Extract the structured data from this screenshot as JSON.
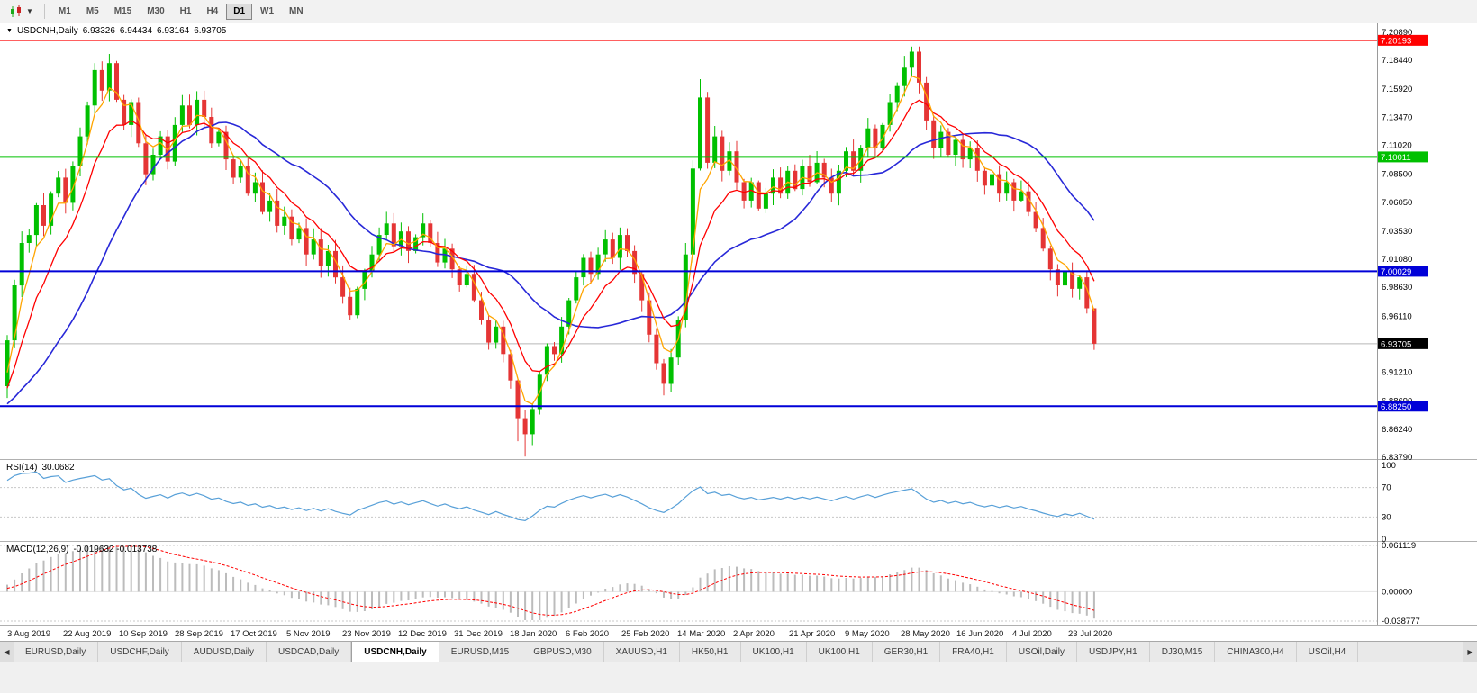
{
  "toolbar": {
    "timeframes": [
      "M1",
      "M5",
      "M15",
      "M30",
      "H1",
      "H4",
      "D1",
      "W1",
      "MN"
    ],
    "active_timeframe": "D1"
  },
  "chart_header": {
    "symbol": "USDCNH,Daily",
    "open": "6.93326",
    "high": "6.94434",
    "low": "6.93164",
    "close": "6.93705"
  },
  "price_axis": {
    "labels": [
      "7.20890",
      "7.18440",
      "7.15920",
      "7.13470",
      "7.11020",
      "7.08500",
      "7.06050",
      "7.03530",
      "7.01080",
      "6.98630",
      "6.96110",
      "6.93660",
      "6.91210",
      "6.88690",
      "6.86240",
      "6.83790"
    ]
  },
  "hlines": [
    {
      "price": 7.20193,
      "label": "7.20193",
      "color": "#ff0000",
      "width": 1.4
    },
    {
      "price": 7.10011,
      "label": "7.10011",
      "color": "#00c000",
      "width": 2
    },
    {
      "price": 7.00029,
      "label": "7.00029",
      "color": "#0000d8",
      "width": 2
    },
    {
      "price": 6.8825,
      "label": "6.88250",
      "color": "#0000d8",
      "width": 2
    }
  ],
  "current_price": {
    "value": 6.93705,
    "label": "6.93705",
    "tag_color": "#000000"
  },
  "chart_data": {
    "type": "candlestick",
    "symbol": "USDCNH",
    "timeframe": "Daily",
    "title": "USDCNH,Daily",
    "ylim": [
      6.8379,
      7.2089
    ],
    "x_labels": [
      "3 Aug 2019",
      "22 Aug 2019",
      "10 Sep 2019",
      "28 Sep 2019",
      "17 Oct 2019",
      "5 Nov 2019",
      "23 Nov 2019",
      "12 Dec 2019",
      "31 Dec 2019",
      "18 Jan 2020",
      "6 Feb 2020",
      "25 Feb 2020",
      "14 Mar 2020",
      "2 Apr 2020",
      "21 Apr 2020",
      "9 May 2020",
      "28 May 2020",
      "16 Jun 2020",
      "4 Jul 2020",
      "23 Jul 2020"
    ],
    "prehistory": [
      6.872,
      6.868,
      6.875,
      6.871,
      6.878,
      6.874,
      6.88,
      6.877,
      6.884,
      6.88,
      6.886,
      6.883,
      6.89,
      6.886,
      6.893,
      6.9
    ],
    "closes": [
      6.94,
      6.988,
      7.025,
      7.032,
      7.058,
      7.04,
      7.068,
      7.082,
      7.06,
      7.092,
      7.118,
      7.145,
      7.176,
      7.158,
      7.182,
      7.15,
      7.128,
      7.148,
      7.112,
      7.085,
      7.102,
      7.118,
      7.096,
      7.128,
      7.145,
      7.128,
      7.15,
      7.135,
      7.112,
      7.122,
      7.098,
      7.082,
      7.092,
      7.068,
      7.078,
      7.052,
      7.062,
      7.04,
      7.048,
      7.028,
      7.038,
      7.015,
      7.028,
      7.005,
      7.018,
      6.995,
      6.978,
      6.962,
      6.985,
      7.0,
      7.015,
      7.032,
      7.042,
      7.022,
      7.035,
      7.018,
      7.03,
      7.042,
      7.025,
      7.008,
      7.02,
      7.002,
      6.988,
      6.998,
      6.975,
      6.958,
      6.938,
      6.952,
      6.928,
      6.905,
      6.872,
      6.858,
      6.88,
      6.91,
      6.935,
      6.928,
      6.952,
      6.975,
      6.995,
      7.012,
      6.998,
      7.015,
      7.028,
      7.012,
      7.032,
      7.018,
      6.998,
      6.975,
      6.945,
      6.92,
      6.902,
      6.925,
      6.958,
      7.015,
      7.09,
      7.152,
      7.095,
      7.118,
      7.088,
      7.105,
      7.078,
      7.062,
      7.078,
      7.055,
      7.068,
      7.082,
      7.068,
      7.088,
      7.072,
      7.092,
      7.078,
      7.095,
      7.082,
      7.068,
      7.088,
      7.105,
      7.088,
      7.108,
      7.125,
      7.108,
      7.128,
      7.148,
      7.162,
      7.178,
      7.192,
      7.165,
      7.132,
      7.108,
      7.122,
      7.102,
      7.115,
      7.098,
      7.108,
      7.088,
      7.075,
      7.085,
      7.068,
      7.078,
      7.062,
      7.07,
      7.052,
      7.038,
      7.02,
      7.002,
      6.988,
      7.0,
      6.985,
      6.995,
      6.968,
      6.937
    ],
    "wick_overrides": {
      "12": {
        "h": 7.182
      },
      "14": {
        "h": 7.19
      },
      "70": {
        "l": 6.852
      },
      "71": {
        "l": 6.8385
      },
      "95": {
        "h": 7.168
      },
      "124": {
        "h": 7.1965
      },
      "149": {
        "h": 6.94434,
        "l": 6.93164
      }
    },
    "last_bar_ohlc": {
      "open": 6.93326,
      "high": 6.94434,
      "low": 6.93164,
      "close": 6.93705
    },
    "up_color": "#00c000",
    "down_color": "#e53535",
    "ma_colors": {
      "fast": "#ffa500",
      "medium": "#ff0000",
      "slow": "#2828d8"
    }
  },
  "rsi": {
    "name": "RSI(14)",
    "value": "30.0682",
    "levels": [
      "100",
      "70",
      "30",
      "0"
    ],
    "line_color": "#58a0d8"
  },
  "macd": {
    "name": "MACD(12,26,9)",
    "values": "-0.019632 -0.013738",
    "axis": [
      "0.061119",
      "0.00000",
      "-0.038777"
    ],
    "hist_color": "#bcbcbc",
    "signal_color": "#ff0000"
  },
  "tabs": {
    "items": [
      "EURUSD,Daily",
      "USDCHF,Daily",
      "AUDUSD,Daily",
      "USDCAD,Daily",
      "USDCNH,Daily",
      "EURUSD,M15",
      "GBPUSD,M30",
      "XAUUSD,H1",
      "HK50,H1",
      "UK100,H1",
      "UK100,H1",
      "GER30,H1",
      "FRA40,H1",
      "USOil,Daily",
      "USDJPY,H1",
      "DJ30,M15",
      "CHINA300,H4",
      "USOil,H4"
    ],
    "active": "USDCNH,Daily",
    "scroll_left": "◀",
    "scroll_right": "▶"
  }
}
